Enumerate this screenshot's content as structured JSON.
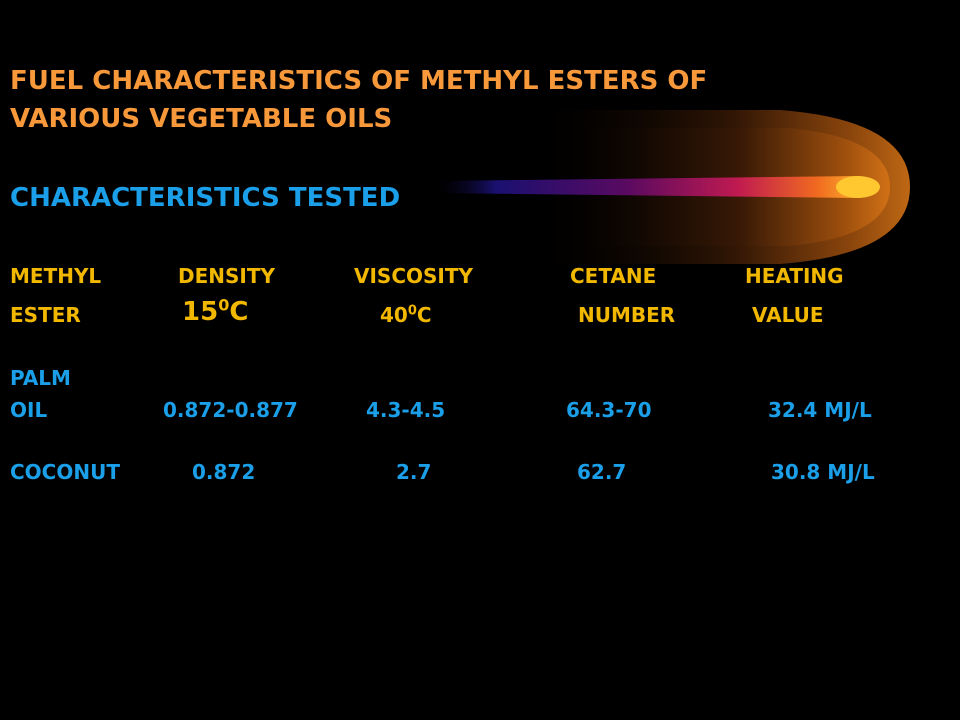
{
  "colors": {
    "background": "#000000",
    "title": "#f7983a",
    "subtitle": "#1a9fe8",
    "header": "#f2b800",
    "data": "#1a9fe8",
    "comet_core": "#ffc830",
    "comet_tail": "#1a1070"
  },
  "title": {
    "line1": "FUEL CHARACTERISTICS OF METHYL ESTERS OF",
    "line2": "VARIOUS VEGETABLE OILS"
  },
  "subtitle": "CHARACTERISTICS TESTED",
  "table": {
    "headers_row1": [
      "METHYL",
      "DENSITY",
      "VISCOSITY",
      "CETANE",
      "HEATING"
    ],
    "headers_row2": {
      "ester": "ESTER",
      "density_temp": "15",
      "density_sup": "0",
      "density_unit": "C",
      "viscosity_temp": "40",
      "viscosity_sup": "0",
      "viscosity_unit": "C",
      "number": "NUMBER",
      "value": "VALUE"
    },
    "rows": [
      {
        "name_line1": "PALM",
        "name_line2": "OIL",
        "density": "0.872-0.877",
        "viscosity": "4.3-4.5",
        "cetane": "64.3-70",
        "heating": "32.4 MJ/L"
      },
      {
        "name_line1": "COCONUT",
        "density": "0.872",
        "viscosity": "2.7",
        "cetane": "62.7",
        "heating": "30.8 MJ/L"
      }
    ]
  }
}
